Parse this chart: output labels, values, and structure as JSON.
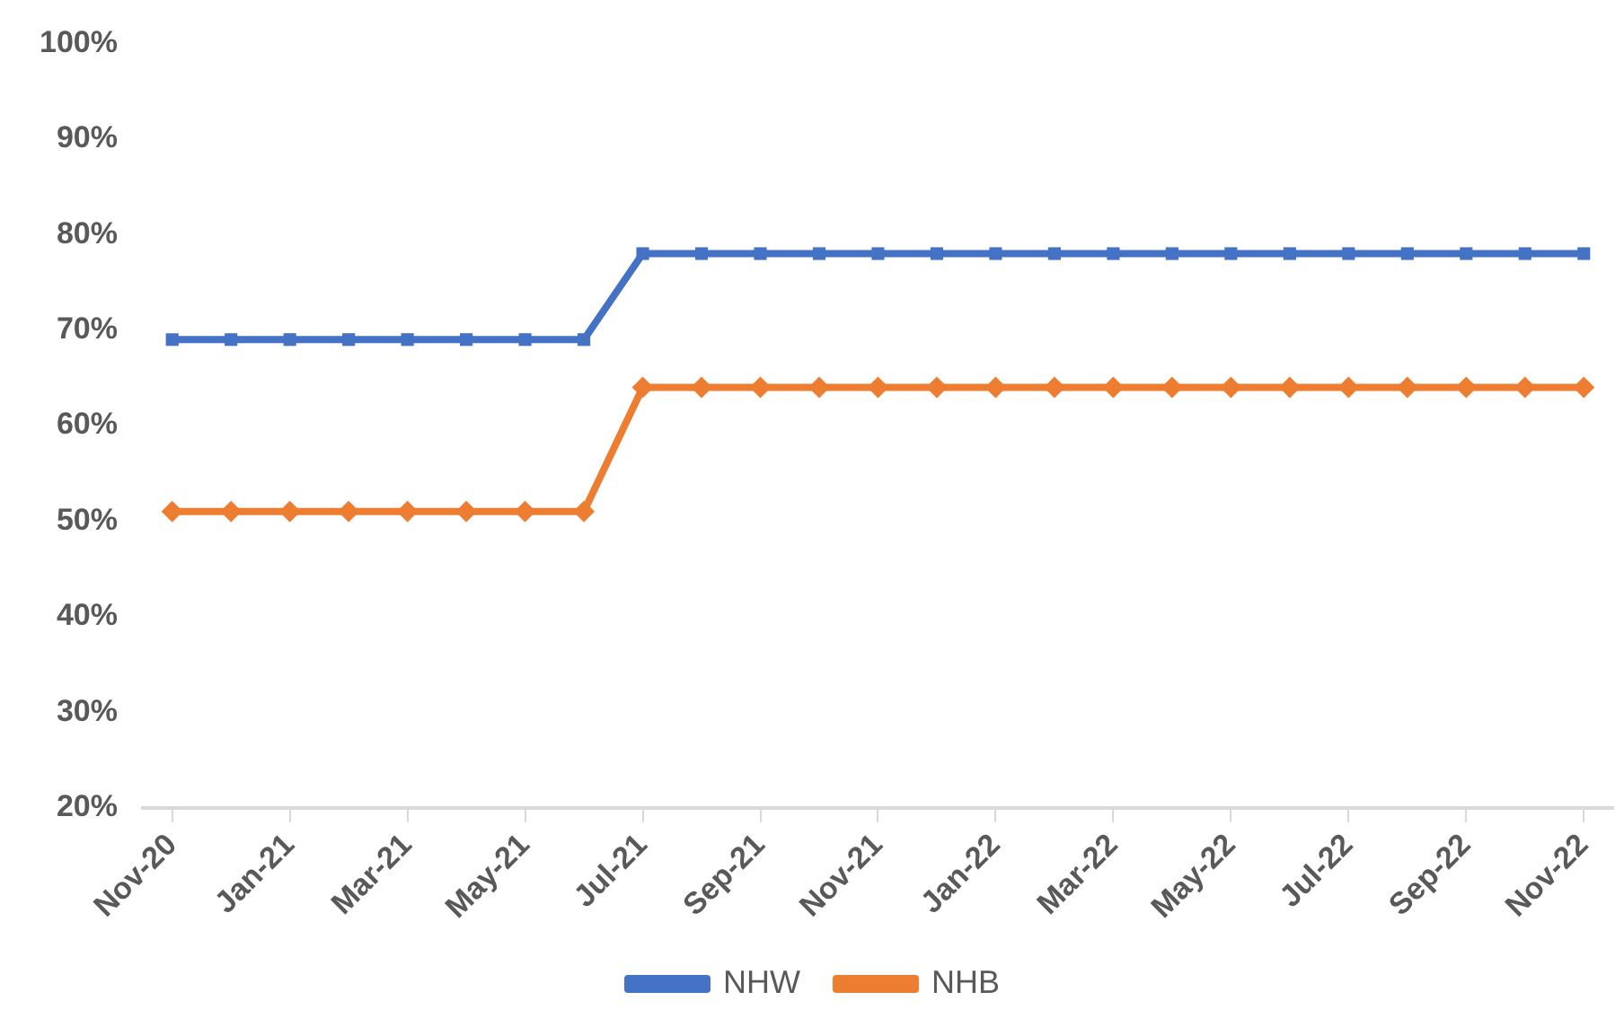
{
  "chart_data": {
    "type": "line",
    "categories": [
      "Nov-20",
      null,
      "Jan-21",
      null,
      "Mar-21",
      null,
      "May-21",
      null,
      "Jul-21",
      null,
      "Sep-21",
      null,
      "Nov-21",
      null,
      "Jan-22",
      null,
      "Mar-22",
      null,
      "May-22",
      null,
      "Jul-22",
      null,
      "Sep-22",
      null,
      "Nov-22"
    ],
    "series": [
      {
        "name": "NHW",
        "color": "#4472c4",
        "marker": "square",
        "values": [
          69,
          69,
          69,
          69,
          69,
          69,
          69,
          69,
          78,
          78,
          78,
          78,
          78,
          78,
          78,
          78,
          78,
          78,
          78,
          78,
          78,
          78,
          78,
          78,
          78
        ]
      },
      {
        "name": "NHB",
        "color": "#ed7d31",
        "marker": "diamond",
        "values": [
          51,
          51,
          51,
          51,
          51,
          51,
          51,
          51,
          64,
          64,
          64,
          64,
          64,
          64,
          64,
          64,
          64,
          64,
          64,
          64,
          64,
          64,
          64,
          64,
          64
        ]
      }
    ],
    "ylim": [
      20,
      100
    ],
    "yticks": [
      {
        "value": 20,
        "label": "20%"
      },
      {
        "value": 30,
        "label": "30%"
      },
      {
        "value": 40,
        "label": "40%"
      },
      {
        "value": 50,
        "label": "50%"
      },
      {
        "value": 60,
        "label": "60%"
      },
      {
        "value": 70,
        "label": "70%"
      },
      {
        "value": 80,
        "label": "80%"
      },
      {
        "value": 90,
        "label": "90%"
      },
      {
        "value": 100,
        "label": "100%"
      }
    ],
    "grid": false,
    "legend": "bottom",
    "line_style": "solid"
  }
}
